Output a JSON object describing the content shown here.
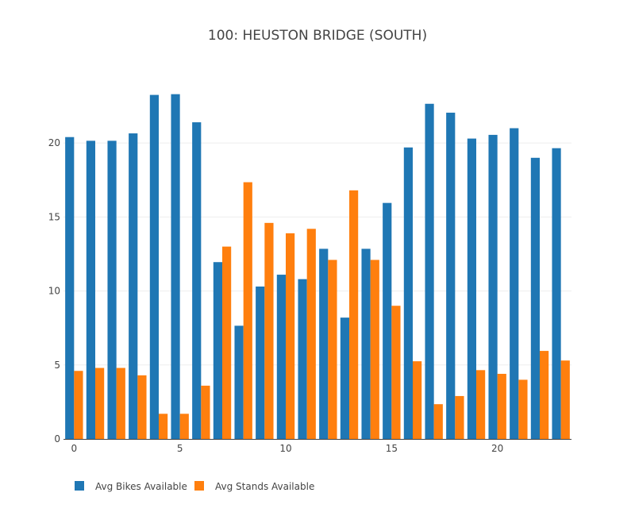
{
  "chart_data": {
    "type": "bar",
    "title": "100: HEUSTON BRIDGE (SOUTH)",
    "xlabel": "",
    "ylabel": "",
    "x": [
      0,
      1,
      2,
      3,
      4,
      5,
      6,
      7,
      8,
      9,
      10,
      11,
      12,
      13,
      14,
      15,
      16,
      17,
      18,
      19,
      20,
      21,
      22,
      23
    ],
    "xticks": [
      0,
      5,
      10,
      15,
      20
    ],
    "yticks": [
      0,
      5,
      10,
      15,
      20
    ],
    "xlim": [
      -0.5,
      23.5
    ],
    "ylim": [
      0,
      24.3
    ],
    "grid": true,
    "legend_position": "bottom-left",
    "series": [
      {
        "name": "Avg Bikes Available",
        "color": "#1f77b4",
        "values": [
          20.4,
          20.15,
          20.15,
          20.65,
          23.25,
          23.3,
          21.4,
          11.95,
          7.65,
          10.3,
          11.1,
          10.8,
          12.85,
          8.2,
          12.85,
          15.95,
          19.7,
          22.65,
          22.05,
          20.3,
          20.55,
          21.0,
          19.0,
          19.65
        ]
      },
      {
        "name": "Avg Stands Available",
        "color": "#ff7f0e",
        "values": [
          4.6,
          4.8,
          4.8,
          4.3,
          1.7,
          1.7,
          3.6,
          13.0,
          17.35,
          14.6,
          13.9,
          14.2,
          12.1,
          16.8,
          12.1,
          9.0,
          5.25,
          2.35,
          2.9,
          4.65,
          4.4,
          4.0,
          5.95,
          5.3
        ]
      }
    ]
  }
}
